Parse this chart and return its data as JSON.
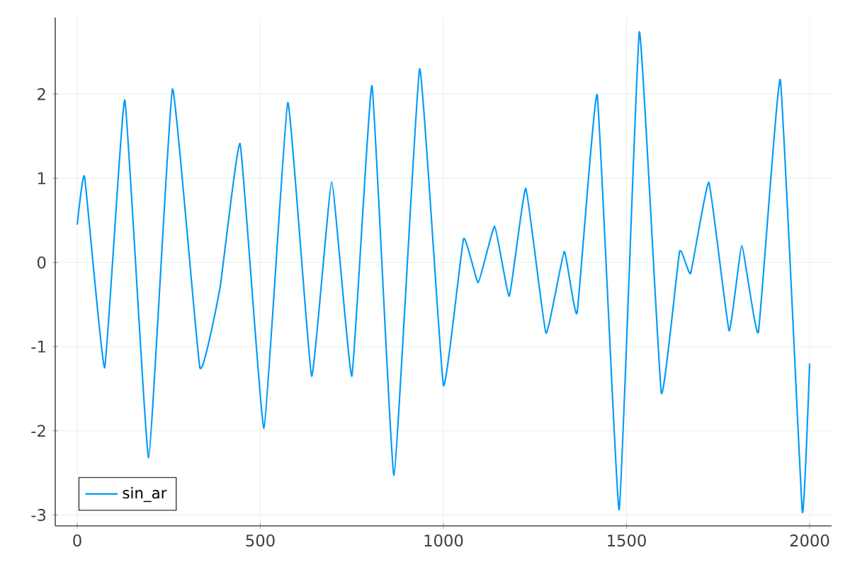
{
  "chart_data": {
    "type": "line",
    "xlim": [
      -60,
      2060
    ],
    "ylim": [
      -3.13,
      2.91
    ],
    "xticks": [
      0,
      500,
      1000,
      1500,
      2000
    ],
    "yticks": [
      -3,
      -2,
      -1,
      0,
      1,
      2
    ],
    "grid": true,
    "legend": "bottom left",
    "series": [
      {
        "name": "sin_ar",
        "color": "#009af9",
        "x": [
          0,
          20,
          75,
          130,
          195,
          260,
          335,
          390,
          445,
          510,
          575,
          640,
          695,
          750,
          805,
          865,
          935,
          1000,
          1055,
          1095,
          1140,
          1180,
          1225,
          1280,
          1330,
          1365,
          1420,
          1480,
          1535,
          1595,
          1645,
          1675,
          1725,
          1780,
          1815,
          1860,
          1920,
          1980,
          2000
        ],
        "values": [
          0.45,
          1.02,
          -1.25,
          1.93,
          -2.32,
          2.06,
          -1.25,
          -0.3,
          1.41,
          -1.97,
          1.9,
          -1.35,
          0.96,
          -1.35,
          2.1,
          -2.53,
          2.3,
          -1.46,
          0.28,
          -0.24,
          0.43,
          -0.4,
          0.88,
          -0.84,
          0.13,
          -0.6,
          1.99,
          -2.94,
          2.74,
          -1.55,
          0.13,
          -0.13,
          0.95,
          -0.81,
          0.2,
          -0.83,
          2.17,
          -2.96,
          -1.2
        ]
      }
    ]
  }
}
